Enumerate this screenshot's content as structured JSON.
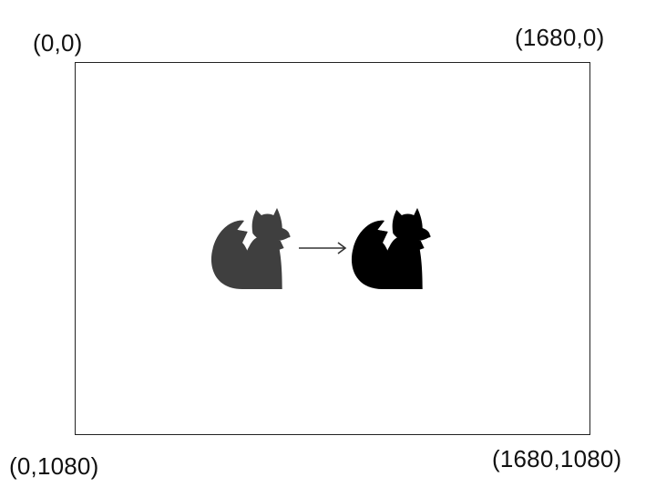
{
  "corners": {
    "top_left": "(0,0)",
    "top_right": "(1680,0)",
    "bottom_left": "(0,1080)",
    "bottom_right": "(1680,1080)"
  },
  "sprite": {
    "faded": {
      "body_color": "#f7e6dc",
      "outline_color": "#e8cfc6",
      "chest_color": "#fdf5f0",
      "opacity": 0.75
    },
    "active": {
      "gradient_top": "#f6b775",
      "gradient_bottom": "#d77a40",
      "outline_color": "#8a2f1e",
      "chest_color": "#fff7ef"
    },
    "arrow_color": "#333333"
  }
}
